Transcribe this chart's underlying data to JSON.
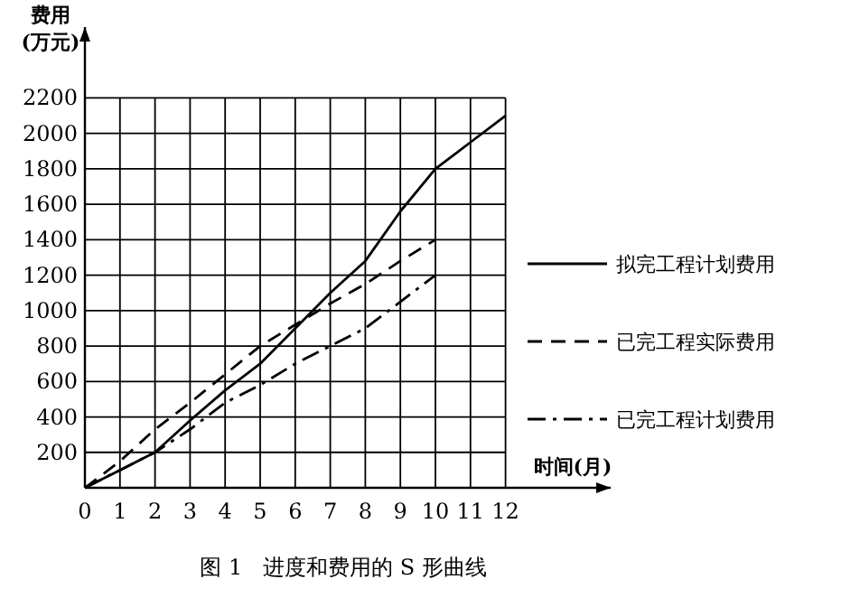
{
  "chart_data": {
    "type": "line",
    "ylabel": "费用\n(万元)",
    "xlabel": "时间(月)",
    "x": [
      0,
      1,
      2,
      3,
      4,
      5,
      6,
      7,
      8,
      9,
      10,
      11,
      12
    ],
    "series": [
      {
        "name": "拟完工程计划费用",
        "color": "#000000",
        "line_style": "solid",
        "values": [
          0,
          100,
          200,
          380,
          550,
          700,
          900,
          1100,
          1280,
          1560,
          1800,
          1950,
          2100
        ]
      },
      {
        "name": "已完工程实际费用",
        "color": "#000000",
        "line_style": "dashed",
        "values": [
          0,
          150,
          330,
          480,
          640,
          800,
          920,
          1040,
          1150,
          1280,
          1400,
          null,
          null
        ]
      },
      {
        "name": "已完工程计划费用",
        "color": "#000000",
        "line_style": "dashdot",
        "values": [
          0,
          100,
          200,
          330,
          480,
          580,
          700,
          800,
          900,
          1050,
          1200,
          null,
          null
        ]
      }
    ],
    "xlim": [
      0,
      15
    ],
    "ylim": [
      0,
      2600
    ],
    "xticks": [
      0,
      1,
      2,
      3,
      4,
      5,
      6,
      7,
      8,
      9,
      10,
      11,
      12
    ],
    "yticks": [
      200,
      400,
      600,
      800,
      1000,
      1200,
      1400,
      1600,
      1800,
      2000,
      2200
    ],
    "grid": true,
    "legend": "right",
    "marker": "none",
    "annotations": [
      "图 1   进度和费用的 S 形曲线"
    ]
  }
}
